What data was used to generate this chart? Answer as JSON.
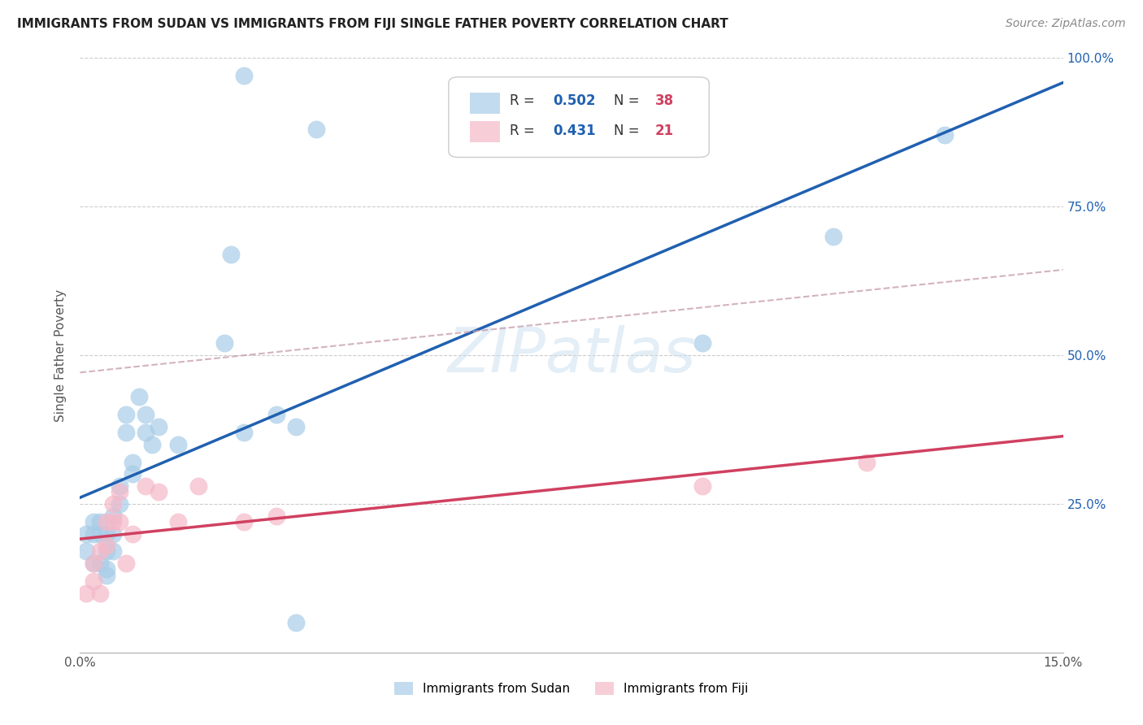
{
  "title": "IMMIGRANTS FROM SUDAN VS IMMIGRANTS FROM FIJI SINGLE FATHER POVERTY CORRELATION CHART",
  "source": "Source: ZipAtlas.com",
  "ylabel": "Single Father Poverty",
  "xlim": [
    0,
    0.15
  ],
  "ylim": [
    0,
    1.0
  ],
  "sudan_color": "#a8cce8",
  "fiji_color": "#f5b8c8",
  "sudan_line_color": "#2060b0",
  "fiji_line_color": "#d04060",
  "fiji_dashed_color": "#c8a0b0",
  "background_color": "#ffffff",
  "watermark": "ZIPatlas",
  "legend_R1_val": "0.502",
  "legend_N1_val": "38",
  "legend_R2_val": "0.431",
  "legend_N2_val": "21",
  "R_color": "#2060b0",
  "N_color": "#d04060",
  "legend_label1": "Immigrants from Sudan",
  "legend_label2": "Immigrants from Fiji",
  "sudan_x": [
    0.001,
    0.001,
    0.002,
    0.002,
    0.002,
    0.003,
    0.003,
    0.003,
    0.004,
    0.004,
    0.004,
    0.004,
    0.005,
    0.005,
    0.005,
    0.006,
    0.006,
    0.007,
    0.007,
    0.008,
    0.008,
    0.009,
    0.01,
    0.01,
    0.011,
    0.012,
    0.015,
    0.022,
    0.023,
    0.025,
    0.03,
    0.033,
    0.033,
    0.036,
    0.095,
    0.115,
    0.132,
    0.025
  ],
  "sudan_y": [
    0.2,
    0.17,
    0.22,
    0.2,
    0.15,
    0.22,
    0.2,
    0.15,
    0.2,
    0.17,
    0.14,
    0.13,
    0.23,
    0.2,
    0.17,
    0.28,
    0.25,
    0.4,
    0.37,
    0.32,
    0.3,
    0.43,
    0.4,
    0.37,
    0.35,
    0.38,
    0.35,
    0.52,
    0.67,
    0.37,
    0.4,
    0.05,
    0.38,
    0.88,
    0.52,
    0.7,
    0.87,
    0.97
  ],
  "fiji_x": [
    0.001,
    0.002,
    0.002,
    0.003,
    0.003,
    0.004,
    0.004,
    0.005,
    0.005,
    0.006,
    0.006,
    0.007,
    0.008,
    0.01,
    0.012,
    0.015,
    0.018,
    0.025,
    0.03,
    0.095,
    0.12
  ],
  "fiji_y": [
    0.1,
    0.15,
    0.12,
    0.17,
    0.1,
    0.22,
    0.18,
    0.25,
    0.22,
    0.27,
    0.22,
    0.15,
    0.2,
    0.28,
    0.27,
    0.22,
    0.28,
    0.22,
    0.23,
    0.28,
    0.32
  ]
}
